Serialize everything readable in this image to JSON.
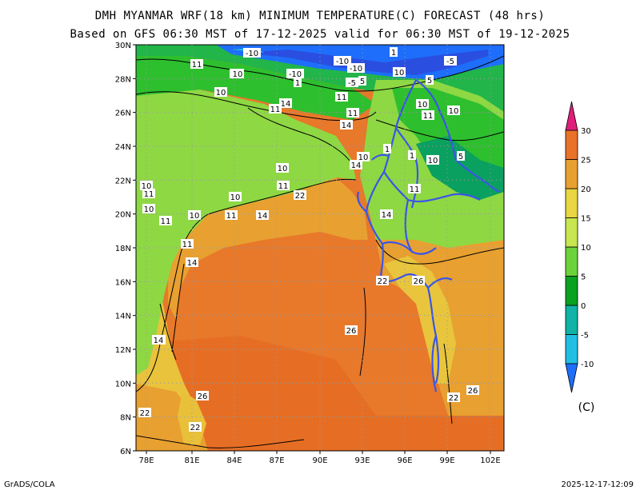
{
  "title_line1": "DMH MYANMAR WRF(18 km) MINIMUM TEMPERATURE(C) FORECAST (48 hrs)",
  "title_line2": "Based on GFS 06:30 MST of 17-12-2025 valid for 06:30 MST of 19-12-2025",
  "footer_left": "GrADS/COLA",
  "footer_right": "2025-12-17-12:09",
  "colorbar": {
    "unit_label": "(C)",
    "levels": [
      "-10",
      "-5",
      "0",
      "5",
      "10",
      "15",
      "20",
      "25",
      "30"
    ],
    "colors": [
      "#1e6efb",
      "#22bfe3",
      "#10b3a5",
      "#0aa020",
      "#6cd23a",
      "#c7e64f",
      "#e8d642",
      "#e8a030",
      "#e87228",
      "#e01e7a"
    ]
  },
  "axes": {
    "x_labels": [
      "78E",
      "81E",
      "84E",
      "87E",
      "90E",
      "93E",
      "96E",
      "99E",
      "102E"
    ],
    "y_labels": [
      "30N",
      "28N",
      "26N",
      "24N",
      "22N",
      "20N",
      "18N",
      "16N",
      "14N",
      "12N",
      "10N",
      "8N",
      "6N"
    ]
  },
  "contour_labels": [
    {
      "t": "-10"
    },
    {
      "t": "-10"
    },
    {
      "t": "-10"
    },
    {
      "t": "-10"
    },
    {
      "t": "-5"
    },
    {
      "t": "5"
    },
    {
      "t": "1"
    },
    {
      "t": "-5"
    },
    {
      "t": "11"
    },
    {
      "t": "10"
    },
    {
      "t": "10"
    },
    {
      "t": "1"
    },
    {
      "t": "10"
    },
    {
      "t": "5"
    },
    {
      "t": "10"
    },
    {
      "t": "11"
    },
    {
      "t": "14"
    },
    {
      "t": "11"
    },
    {
      "t": "10"
    },
    {
      "t": "11"
    },
    {
      "t": "10"
    },
    {
      "t": "11"
    },
    {
      "t": "14"
    },
    {
      "t": "1"
    },
    {
      "t": "10"
    },
    {
      "t": "14"
    },
    {
      "t": "10"
    },
    {
      "t": "5"
    },
    {
      "t": "10"
    },
    {
      "t": "11"
    },
    {
      "t": "10"
    },
    {
      "t": "11"
    },
    {
      "t": "22"
    },
    {
      "t": "11"
    },
    {
      "t": "1"
    },
    {
      "t": "10"
    },
    {
      "t": "10"
    },
    {
      "t": "10"
    },
    {
      "t": "11"
    },
    {
      "t": "14"
    },
    {
      "t": "14"
    },
    {
      "t": "14"
    },
    {
      "t": "11"
    },
    {
      "t": "11"
    },
    {
      "t": "14"
    },
    {
      "t": "22"
    },
    {
      "t": "26"
    },
    {
      "t": "14"
    },
    {
      "t": "26"
    },
    {
      "t": "22"
    },
    {
      "t": "26"
    },
    {
      "t": "26"
    },
    {
      "t": "22"
    },
    {
      "t": "22"
    }
  ]
}
